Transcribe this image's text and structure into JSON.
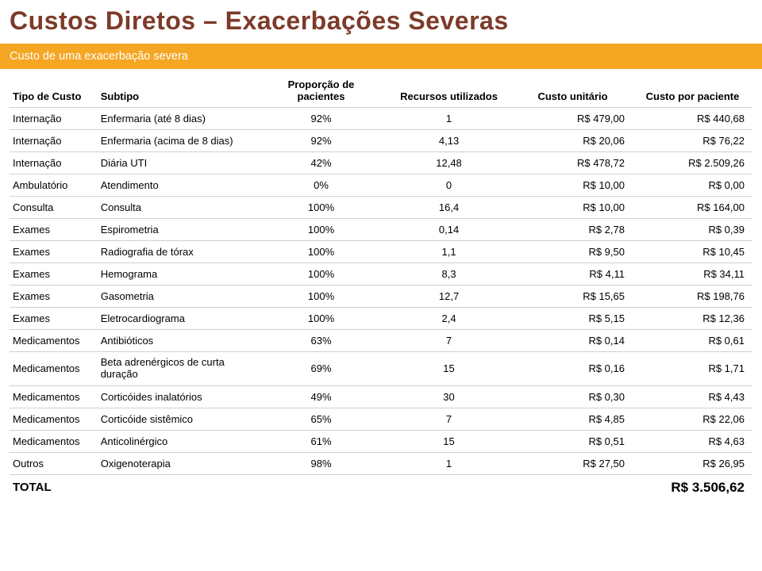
{
  "title": "Custos Diretos – Exacerbações Severas",
  "banner": "Custo de uma exacerbação severa",
  "columns": {
    "tipo": "Tipo de Custo",
    "subtipo": "Subtipo",
    "proporcao_line1": "Proporção de",
    "proporcao_line2": "pacientes",
    "recursos": "Recursos utilizados",
    "unitario": "Custo unitário",
    "paciente": "Custo por paciente"
  },
  "rows": [
    {
      "tipo": "Internação",
      "subtipo": "Enfermaria (até 8 dias)",
      "prop": "92%",
      "rec": "1",
      "unit": "R$ 479,00",
      "pac": "R$ 440,68"
    },
    {
      "tipo": "Internação",
      "subtipo": "Enfermaria (acima de 8 dias)",
      "prop": "92%",
      "rec": "4,13",
      "unit": "R$ 20,06",
      "pac": "R$ 76,22"
    },
    {
      "tipo": "Internação",
      "subtipo": "Diária UTI",
      "prop": "42%",
      "rec": "12,48",
      "unit": "R$ 478,72",
      "pac": "R$ 2.509,26"
    },
    {
      "tipo": "Ambulatório",
      "subtipo": "Atendimento",
      "prop": "0%",
      "rec": "0",
      "unit": "R$ 10,00",
      "pac": "R$ 0,00"
    },
    {
      "tipo": "Consulta",
      "subtipo": "Consulta",
      "prop": "100%",
      "rec": "16,4",
      "unit": "R$ 10,00",
      "pac": "R$ 164,00"
    },
    {
      "tipo": "Exames",
      "subtipo": "Espirometria",
      "prop": "100%",
      "rec": "0,14",
      "unit": "R$ 2,78",
      "pac": "R$ 0,39"
    },
    {
      "tipo": "Exames",
      "subtipo": "Radiografia de tórax",
      "prop": "100%",
      "rec": "1,1",
      "unit": "R$ 9,50",
      "pac": "R$ 10,45"
    },
    {
      "tipo": "Exames",
      "subtipo": "Hemograma",
      "prop": "100%",
      "rec": "8,3",
      "unit": "R$ 4,11",
      "pac": "R$ 34,11"
    },
    {
      "tipo": "Exames",
      "subtipo": "Gasometria",
      "prop": "100%",
      "rec": "12,7",
      "unit": "R$ 15,65",
      "pac": "R$ 198,76"
    },
    {
      "tipo": "Exames",
      "subtipo": "Eletrocardiograma",
      "prop": "100%",
      "rec": "2,4",
      "unit": "R$ 5,15",
      "pac": "R$ 12,36"
    },
    {
      "tipo": "Medicamentos",
      "subtipo": "Antibióticos",
      "prop": "63%",
      "rec": "7",
      "unit": "R$ 0,14",
      "pac": "R$ 0,61"
    },
    {
      "tipo": "Medicamentos",
      "subtipo": "Beta adrenérgicos de curta\nduração",
      "prop": "69%",
      "rec": "15",
      "unit": "R$ 0,16",
      "pac": "R$ 1,71"
    },
    {
      "tipo": "Medicamentos",
      "subtipo": "Corticóides inalatórios",
      "prop": "49%",
      "rec": "30",
      "unit": "R$ 0,30",
      "pac": "R$ 4,43"
    },
    {
      "tipo": "Medicamentos",
      "subtipo": "Corticóide sistêmico",
      "prop": "65%",
      "rec": "7",
      "unit": "R$ 4,85",
      "pac": "R$ 22,06"
    },
    {
      "tipo": "Medicamentos",
      "subtipo": "Anticolinérgico",
      "prop": "61%",
      "rec": "15",
      "unit": "R$ 0,51",
      "pac": "R$ 4,63"
    },
    {
      "tipo": "Outros",
      "subtipo": "Oxigenoterapia",
      "prop": "98%",
      "rec": "1",
      "unit": "R$ 27,50",
      "pac": "R$ 26,95"
    }
  ],
  "total": {
    "label": "TOTAL",
    "value": "R$ 3.506,62"
  },
  "colors": {
    "title": "#7d3a2a",
    "banner_bg": "#f5a623",
    "banner_text": "#ffffff",
    "border": "#d0d0d0"
  }
}
